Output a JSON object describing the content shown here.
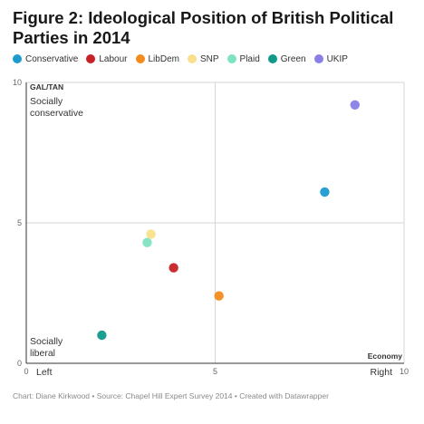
{
  "title": "Figure 2: Ideological Position of British Political Parties in 2014",
  "footer": "Chart: Diane Kirkwood • Source: Chapel Hill Expert Survey 2014 • Created with Datawrapper",
  "annotations": {
    "socially_conservative": [
      "Socially",
      "conservative"
    ],
    "socially_liberal": [
      "Socially",
      "liberal"
    ],
    "left": "Left",
    "right": "Right"
  },
  "chart_data": {
    "type": "scatter",
    "title": "Figure 2: Ideological Position of British Political Parties in 2014",
    "xlabel": "Economy",
    "ylabel": "GAL/TAN",
    "xlim": [
      0,
      10
    ],
    "ylim": [
      0,
      10
    ],
    "x_ticks": [
      0,
      5,
      10
    ],
    "y_ticks": [
      0,
      5,
      10
    ],
    "grid": true,
    "legend_position": "top",
    "series": [
      {
        "name": "Conservative",
        "color": "#1d9bd1",
        "x": 7.9,
        "y": 6.1
      },
      {
        "name": "Labour",
        "color": "#c62126",
        "x": 3.9,
        "y": 3.4
      },
      {
        "name": "LibDem",
        "color": "#f28c1c",
        "x": 5.1,
        "y": 2.4
      },
      {
        "name": "SNP",
        "color": "#f9e08c",
        "x": 3.3,
        "y": 4.6
      },
      {
        "name": "Plaid",
        "color": "#7fe3c0",
        "x": 3.2,
        "y": 4.3
      },
      {
        "name": "Green",
        "color": "#12998a",
        "x": 2.0,
        "y": 1.0
      },
      {
        "name": "UKIP",
        "color": "#8a7fe8",
        "x": 8.7,
        "y": 9.2
      }
    ]
  }
}
